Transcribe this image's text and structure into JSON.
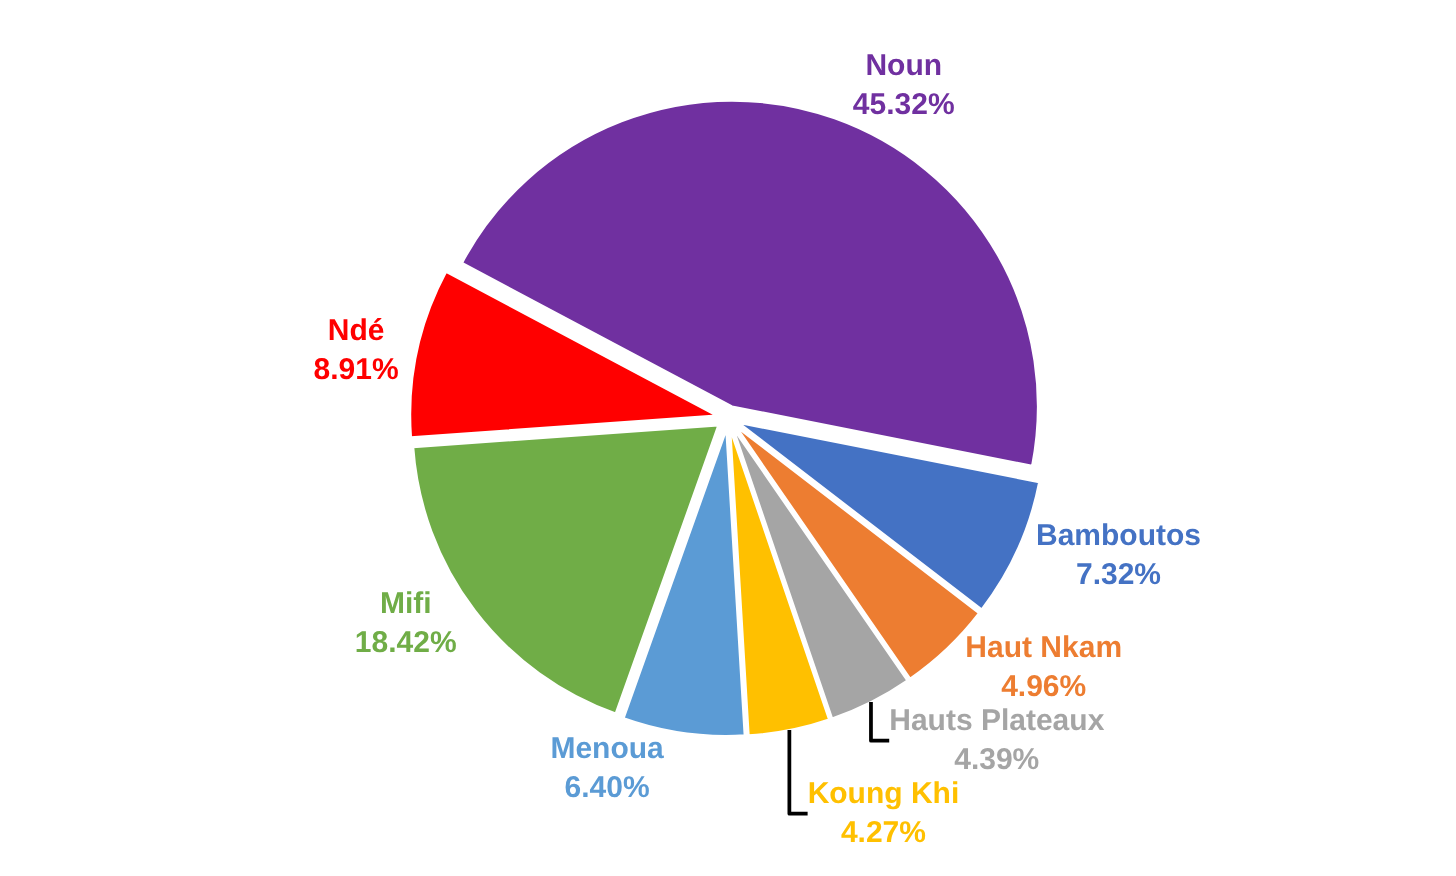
{
  "chart_data": {
    "type": "pie",
    "categories": [
      "Noun",
      "Bamboutos",
      "Haut Nkam",
      "Hauts Plateaux",
      "Koung Khi",
      "Menoua",
      "Mifi",
      "Ndé"
    ],
    "values": [
      45.32,
      7.32,
      4.96,
      4.39,
      4.27,
      6.4,
      18.42,
      8.91
    ],
    "value_labels": [
      "45.32%",
      "7.32%",
      "4.96%",
      "4.39%",
      "4.27%",
      "6.40%",
      "18.42%",
      "8.91%"
    ],
    "colors": [
      "#7030a0",
      "#4472c4",
      "#ed7d31",
      "#a5a5a5",
      "#ffc000",
      "#5b9bd5",
      "#70ad47",
      "#ff0000"
    ],
    "legend": false
  }
}
